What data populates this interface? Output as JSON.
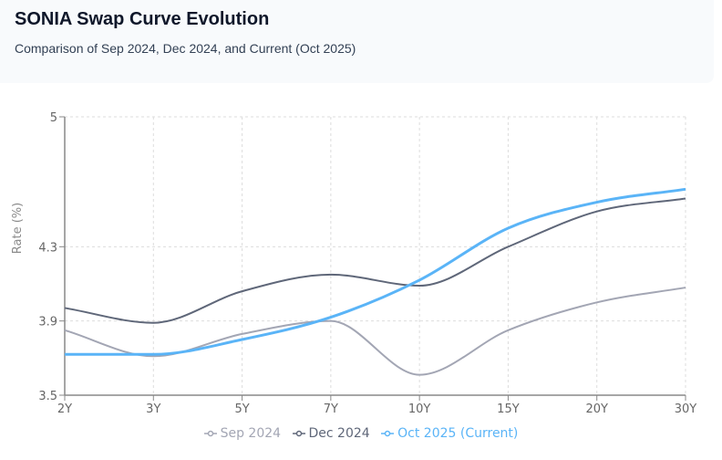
{
  "header": {
    "title": "SONIA Swap Curve Evolution",
    "subtitle": "Comparison of Sep 2024, Dec 2024, and Current (Oct 2025)"
  },
  "colors": {
    "sep_2024": "#a3a6b4",
    "dec_2024": "#5f6779",
    "oct_2025": "#5ab4f7",
    "grid": "#dddddd",
    "axis": "#888888"
  },
  "chart_data": {
    "type": "line",
    "title": "SONIA Swap Curve Evolution",
    "subtitle": "Comparison of Sep 2024, Dec 2024, and Current (Oct 2025)",
    "xlabel": "",
    "ylabel": "Rate (%)",
    "categories": [
      "2Y",
      "3Y",
      "5Y",
      "7Y",
      "10Y",
      "15Y",
      "20Y",
      "30Y"
    ],
    "ylim": [
      3.5,
      5
    ],
    "yticks": [
      3.5,
      3.9,
      4.3,
      5
    ],
    "ytick_labels": [
      "3.5",
      "3.9",
      "4.3",
      "5"
    ],
    "grid": true,
    "legend_position": "bottom",
    "series": [
      {
        "name": "Sep 2024",
        "values": [
          3.85,
          3.71,
          3.83,
          3.9,
          3.61,
          3.85,
          4.0,
          4.08
        ]
      },
      {
        "name": "Dec 2024",
        "values": [
          3.97,
          3.89,
          4.06,
          4.15,
          4.09,
          4.3,
          4.49,
          4.56
        ]
      },
      {
        "name": "Oct 2025 (Current)",
        "values": [
          3.72,
          3.72,
          3.8,
          3.92,
          4.12,
          4.4,
          4.54,
          4.61
        ]
      }
    ]
  },
  "legend": {
    "items": [
      {
        "label": "Sep 2024"
      },
      {
        "label": "Dec 2024"
      },
      {
        "label": "Oct 2025 (Current)"
      }
    ]
  }
}
